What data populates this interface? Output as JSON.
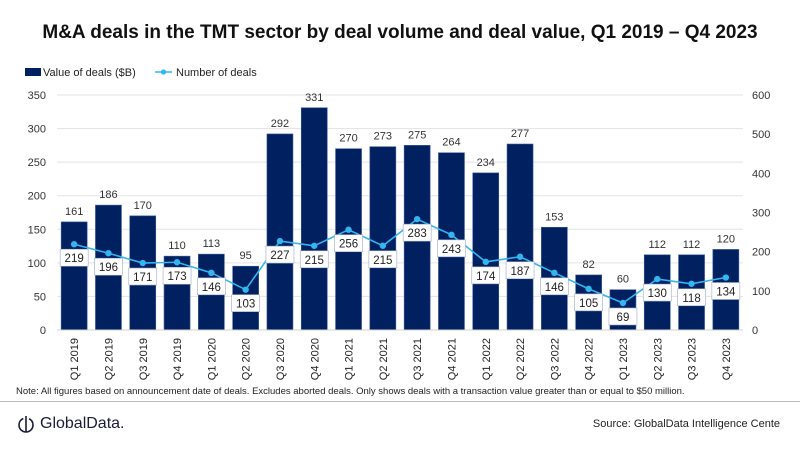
{
  "chart_data": {
    "type": "bar",
    "title": "M&A deals in the TMT sector by deal volume and deal value, Q1 2019 – Q4 2023",
    "categories": [
      "Q1 2019",
      "Q2 2019",
      "Q3 2019",
      "Q4 2019",
      "Q1 2020",
      "Q2 2020",
      "Q3 2020",
      "Q4 2020",
      "Q1 2021",
      "Q2 2021",
      "Q3 2021",
      "Q4 2021",
      "Q1 2022",
      "Q2 2022",
      "Q3 2022",
      "Q4 2022",
      "Q1 2023",
      "Q2 2023",
      "Q3 2023",
      "Q4 2023"
    ],
    "series": [
      {
        "name": "Value of deals ($B)",
        "type": "bar",
        "axis": "left",
        "color": "#002060",
        "values": [
          161,
          186,
          170,
          110,
          113,
          95,
          292,
          331,
          270,
          273,
          275,
          264,
          234,
          277,
          153,
          82,
          60,
          112,
          112,
          120
        ]
      },
      {
        "name": "Number of deals",
        "type": "line",
        "axis": "right",
        "color": "#33b5f0",
        "values": [
          219,
          196,
          171,
          173,
          146,
          103,
          227,
          215,
          256,
          215,
          283,
          243,
          174,
          187,
          146,
          105,
          69,
          130,
          118,
          134
        ]
      }
    ],
    "left_axis": {
      "range": [
        0,
        350
      ],
      "ticks": [
        0,
        50,
        100,
        150,
        200,
        250,
        300,
        350
      ]
    },
    "right_axis": {
      "range": [
        0,
        600
      ],
      "ticks": [
        0,
        100,
        200,
        300,
        400,
        500,
        600
      ]
    },
    "grid": true,
    "legend_position": "top-left"
  },
  "note": "Note: All figures based on announcement date of deals. Excludes aborted deals. Only shows deals with a transaction value greater than or equal to $50 million.",
  "logo": "GlobalData.",
  "source": "Source: GlobalData Intelligence Cente"
}
